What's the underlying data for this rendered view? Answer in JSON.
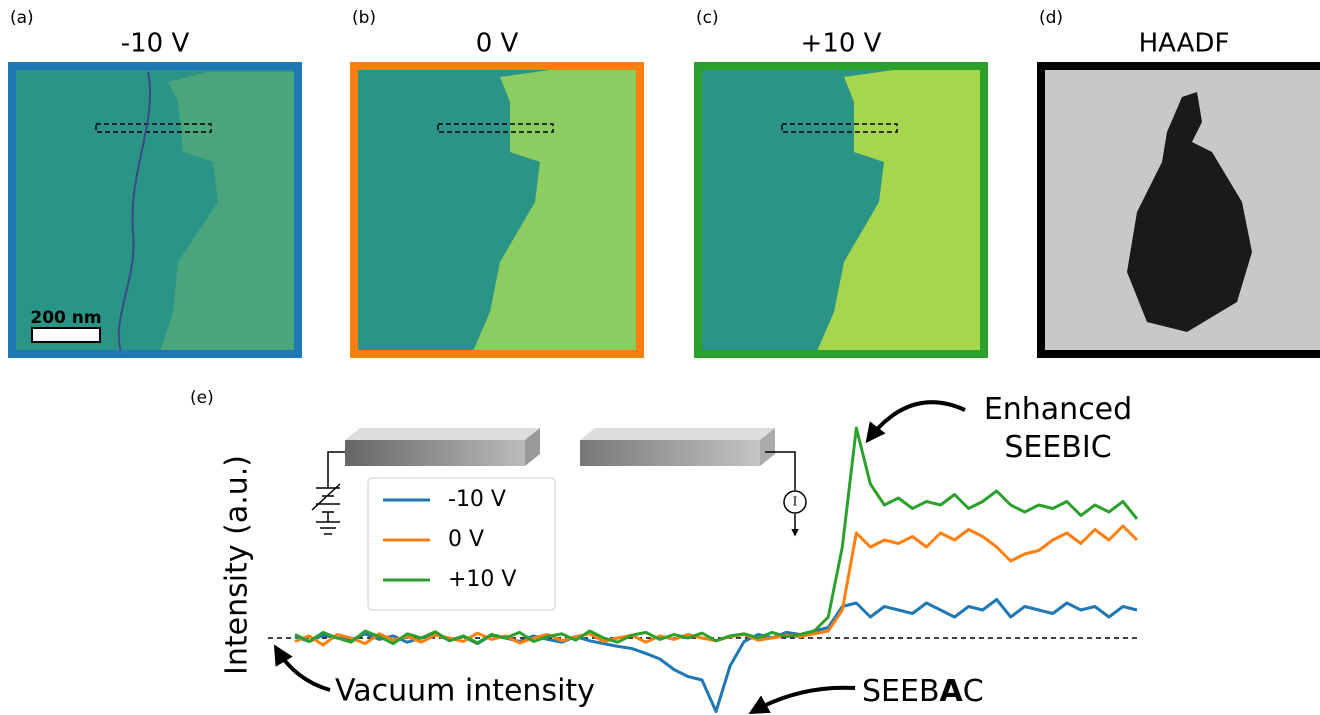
{
  "panels": [
    {
      "label": "(a)",
      "title": "-10 V",
      "border_color": "#1f77b4"
    },
    {
      "label": "(b)",
      "title": "0 V",
      "border_color": "#ff7f0e"
    },
    {
      "label": "(c)",
      "title": "+10 V",
      "border_color": "#2ca02c"
    },
    {
      "label": "(d)",
      "title": "HAADF",
      "border_color": "#000000"
    }
  ],
  "scale_bar": "200 nm",
  "chart_data": {
    "type": "line",
    "label": "(e)",
    "ylabel": "Intensity (a.u.)",
    "ylim": [
      -1.1,
      3.1
    ],
    "reference_line": 0,
    "annotations": [
      "Enhanced\nSEEBIC",
      "Vacuum intensity",
      "SEEBAC"
    ],
    "series": [
      {
        "name": "-10 V",
        "color": "#1f77b4",
        "values": [
          0.02,
          -0.05,
          0.04,
          0.0,
          -0.03,
          0.06,
          -0.02,
          0.03,
          -0.06,
          0.0,
          0.05,
          -0.03,
          0.02,
          -0.08,
          0.04,
          0.0,
          -0.05,
          0.03,
          -0.02,
          -0.06,
          0.02,
          -0.04,
          -0.08,
          -0.12,
          -0.15,
          -0.22,
          -0.3,
          -0.45,
          -0.55,
          -0.6,
          -1.05,
          -0.4,
          -0.05,
          0.05,
          0.0,
          0.08,
          0.05,
          0.1,
          0.15,
          0.45,
          0.5,
          0.3,
          0.45,
          0.4,
          0.35,
          0.5,
          0.4,
          0.3,
          0.45,
          0.4,
          0.55,
          0.3,
          0.45,
          0.4,
          0.35,
          0.5,
          0.4,
          0.45,
          0.3,
          0.45,
          0.4
        ]
      },
      {
        "name": "0 V",
        "color": "#ff7f0e",
        "values": [
          -0.05,
          0.03,
          -0.1,
          0.05,
          0.0,
          -0.08,
          0.06,
          -0.03,
          0.02,
          -0.06,
          0.04,
          0.0,
          -0.05,
          0.07,
          -0.02,
          0.03,
          -0.07,
          0.0,
          0.05,
          -0.04,
          0.02,
          0.06,
          -0.05,
          0.0,
          0.04,
          -0.06,
          0.03,
          -0.02,
          0.05,
          0.0,
          -0.04,
          0.02,
          0.05,
          -0.03,
          0.0,
          0.04,
          0.02,
          0.06,
          0.1,
          0.4,
          1.5,
          1.3,
          1.4,
          1.35,
          1.45,
          1.3,
          1.5,
          1.4,
          1.55,
          1.45,
          1.3,
          1.1,
          1.2,
          1.25,
          1.4,
          1.5,
          1.35,
          1.55,
          1.4,
          1.6,
          1.4
        ]
      },
      {
        "name": "+10 V",
        "color": "#2ca02c",
        "values": [
          0.05,
          -0.05,
          0.08,
          0.0,
          -0.06,
          0.1,
          0.02,
          -0.08,
          0.06,
          0.0,
          0.09,
          -0.04,
          0.03,
          -0.07,
          0.05,
          0.0,
          0.08,
          -0.05,
          0.02,
          0.06,
          -0.03,
          0.1,
          0.0,
          -0.06,
          0.04,
          0.08,
          -0.02,
          0.05,
          0.0,
          0.07,
          -0.04,
          0.03,
          0.06,
          0.0,
          0.08,
          0.02,
          0.05,
          0.1,
          0.3,
          1.3,
          3.0,
          2.2,
          1.9,
          2.0,
          1.85,
          1.95,
          1.9,
          2.05,
          1.85,
          1.95,
          2.1,
          1.9,
          1.8,
          1.9,
          1.85,
          1.95,
          1.75,
          1.9,
          1.8,
          1.95,
          1.7
        ]
      }
    ]
  }
}
